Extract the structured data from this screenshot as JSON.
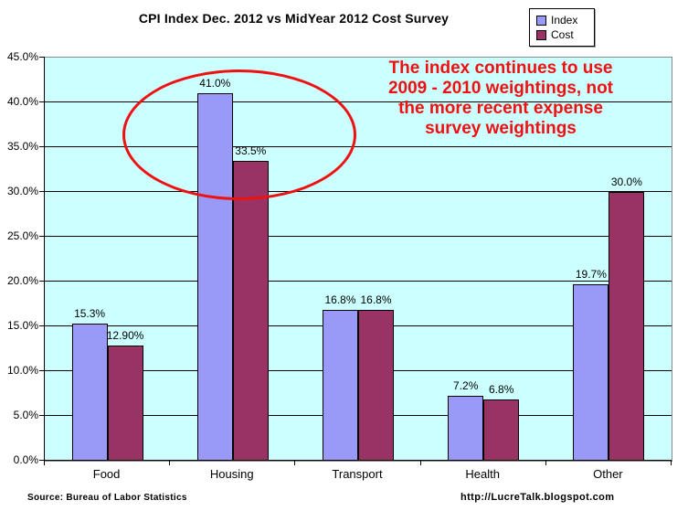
{
  "title": "CPI Index Dec. 2012 vs MidYear 2012 Cost Survey",
  "legend": {
    "items": [
      {
        "label": "Index",
        "color": "#9999f8"
      },
      {
        "label": "Cost",
        "color": "#993366"
      }
    ]
  },
  "annotation": {
    "lines": [
      "The index continues to use",
      "2009 - 2010 weightings, not",
      "the more recent expense",
      "survey weightings"
    ],
    "color": "#ee1111"
  },
  "highlight_ellipse": {
    "color": "#ee1111",
    "target": "Housing bars"
  },
  "chart_data": {
    "type": "bar",
    "categories": [
      "Food",
      "Housing",
      "Transport",
      "Health",
      "Other"
    ],
    "series": [
      {
        "name": "Index",
        "color": "#9999f8",
        "values": [
          15.3,
          41.0,
          16.8,
          7.2,
          19.7
        ],
        "labels": [
          "15.3%",
          "41.0%",
          "16.8%",
          "7.2%",
          "19.7%"
        ]
      },
      {
        "name": "Cost",
        "color": "#993366",
        "values": [
          12.9,
          33.5,
          16.8,
          6.8,
          30.0
        ],
        "labels": [
          "12.90%",
          "33.5%",
          "16.8%",
          "6.8%",
          "30.0%"
        ]
      }
    ],
    "title": "CPI Index Dec. 2012 vs MidYear 2012 Cost Survey",
    "xlabel": "",
    "ylabel": "",
    "ylim": [
      0,
      45
    ],
    "ytick_values": [
      0,
      5,
      10,
      15,
      20,
      25,
      30,
      35,
      40,
      45
    ],
    "ytick_labels": [
      "0.0%",
      "5.0%",
      "10.0%",
      "15.0%",
      "20.0%",
      "25.0%",
      "30.0%",
      "35.0%",
      "40.0%",
      "45.0%"
    ],
    "grid": true,
    "plot_background": "#ccffff",
    "gridline_color": "#000000",
    "legend_position": "top-right"
  },
  "footer": {
    "source": "Source: Bureau of Labor Statistics",
    "url": "http://LucreTalk.blogspot.com"
  }
}
